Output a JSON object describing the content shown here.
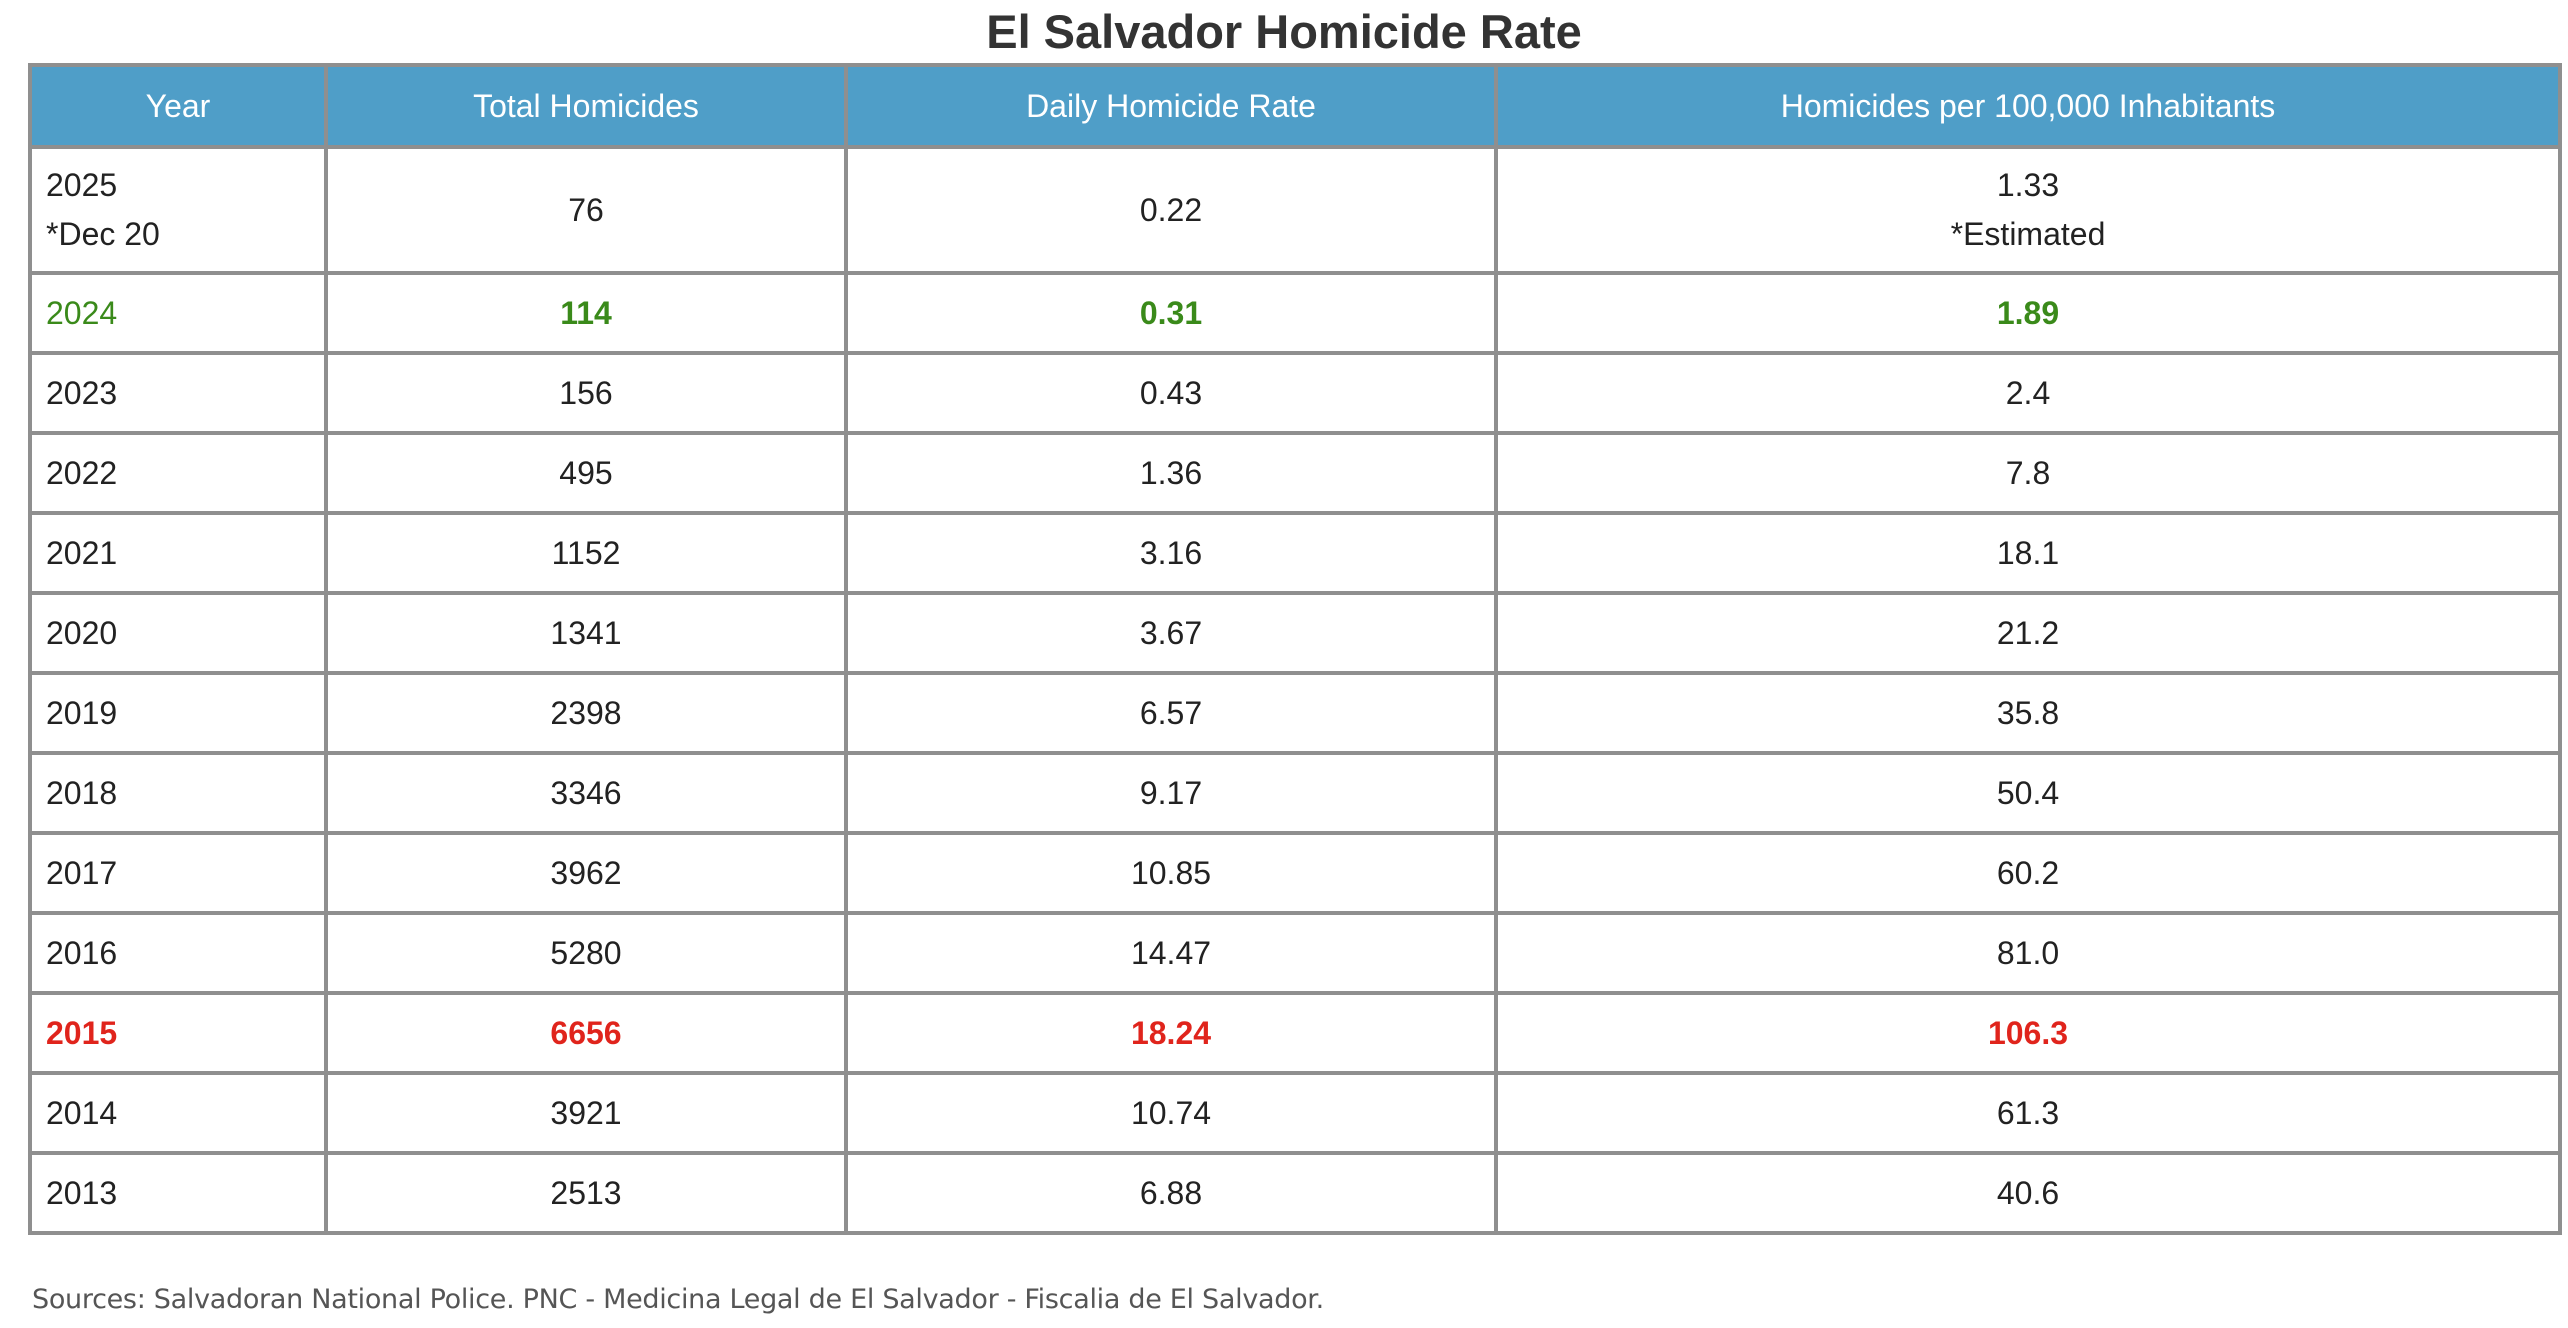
{
  "title": "El Salvador Homicide Rate",
  "table": {
    "headers": {
      "year": "Year",
      "total": "Total Homicides",
      "daily": "Daily Homicide Rate",
      "per100k": "Homicides per 100,000 Inhabitants"
    },
    "rows": [
      {
        "year": "2025",
        "year_note": "*Dec 20",
        "total": "76",
        "daily": "0.22",
        "per100k": "1.33",
        "per100k_note": "*Estimated"
      },
      {
        "year": "2024",
        "total": "114",
        "daily": "0.31",
        "per100k": "1.89",
        "highlight": "green"
      },
      {
        "year": "2023",
        "total": "156",
        "daily": "0.43",
        "per100k": "2.4"
      },
      {
        "year": "2022",
        "total": "495",
        "daily": "1.36",
        "per100k": "7.8"
      },
      {
        "year": "2021",
        "total": "1152",
        "daily": "3.16",
        "per100k": "18.1"
      },
      {
        "year": "2020",
        "total": "1341",
        "daily": "3.67",
        "per100k": "21.2"
      },
      {
        "year": "2019",
        "total": "2398",
        "daily": "6.57",
        "per100k": "35.8"
      },
      {
        "year": "2018",
        "total": "3346",
        "daily": "9.17",
        "per100k": "50.4"
      },
      {
        "year": "2017",
        "total": "3962",
        "daily": "10.85",
        "per100k": "60.2"
      },
      {
        "year": "2016",
        "total": "5280",
        "daily": "14.47",
        "per100k": "81.0"
      },
      {
        "year": "2015",
        "total": "6656",
        "daily": "18.24",
        "per100k": "106.3",
        "highlight": "red"
      },
      {
        "year": "2014",
        "total": "3921",
        "daily": "10.74",
        "per100k": "61.3"
      },
      {
        "year": "2013",
        "total": "2513",
        "daily": "6.88",
        "per100k": "40.6"
      }
    ]
  },
  "footnote": "Sources: Salvadoran National Police. PNC - Medicina Legal de El Salvador - Fiscalia de El Salvador.",
  "colors": {
    "header_bg": "#4f9ec8",
    "border": "#8f8f8f",
    "highlight_green": "#3a8a1a",
    "highlight_red": "#e0241c"
  }
}
